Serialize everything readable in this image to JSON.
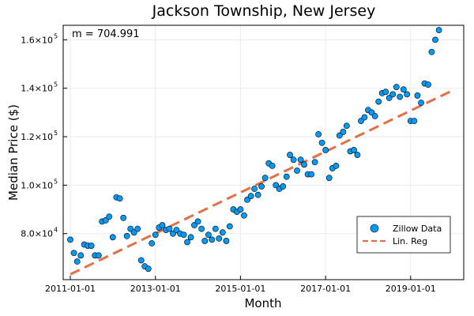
{
  "chart_data": {
    "type": "scatter",
    "title": "Jackson Township, New Jersey",
    "xlabel": "Month",
    "ylabel": "Median Price ($)",
    "annotation": "m = 704.991",
    "x_ticks": [
      "2011-01-01",
      "2013-01-01",
      "2015-01-01",
      "2017-01-01",
      "2019-01-01"
    ],
    "y_ticks": [
      {
        "value": 80000,
        "mantissa": "8.0×10",
        "exp": "4"
      },
      {
        "value": 100000,
        "mantissa": "1.0×10",
        "exp": "5"
      },
      {
        "value": 120000,
        "mantissa": "1.2×10",
        "exp": "5"
      },
      {
        "value": 140000,
        "mantissa": "1.4×10",
        "exp": "5"
      },
      {
        "value": 160000,
        "mantissa": "1.6×10",
        "exp": "5"
      }
    ],
    "xlim": [
      "2010-11-01",
      "2020-04-01"
    ],
    "ylim": [
      61000,
      166000
    ],
    "grid": true,
    "legend_position": "bottom-right",
    "series": [
      {
        "name": "Zillow Data",
        "type": "scatter",
        "color": "#009af9",
        "x_start": "2011-01-01",
        "x_step": "1 month",
        "values": [
          77500,
          72000,
          68500,
          71000,
          75500,
          75000,
          75000,
          71000,
          71000,
          85000,
          85500,
          87000,
          78500,
          95000,
          94500,
          86500,
          79000,
          82000,
          80500,
          82000,
          69000,
          66500,
          65500,
          76000,
          79500,
          82500,
          83500,
          81500,
          82000,
          80000,
          81500,
          80000,
          79500,
          76500,
          78500,
          83500,
          85000,
          82000,
          77000,
          79500,
          77500,
          82000,
          78000,
          80500,
          77000,
          83000,
          90000,
          89000,
          90000,
          87500,
          94000,
          95500,
          98500,
          96000,
          99500,
          103000,
          109000,
          108000,
          100000,
          98500,
          99500,
          103500,
          112500,
          110500,
          106000,
          110500,
          108500,
          104500,
          104500,
          109500,
          121000,
          117500,
          114500,
          103000,
          107000,
          108000,
          120500,
          122000,
          124500,
          114000,
          114500,
          112500,
          126500,
          128000,
          131000,
          130000,
          128500,
          134500,
          138000,
          138500,
          136000,
          137500,
          140500,
          136500,
          139500,
          137500,
          126500,
          126500,
          137000,
          134000,
          142000,
          141500,
          155000,
          160000,
          164000
        ]
      },
      {
        "name": "Lin. Reg",
        "type": "line",
        "style": "dashed",
        "color": "#e26f46",
        "x": [
          "2011-01-01",
          "2020-01-01"
        ],
        "values": [
          63200,
          139200
        ]
      }
    ]
  }
}
